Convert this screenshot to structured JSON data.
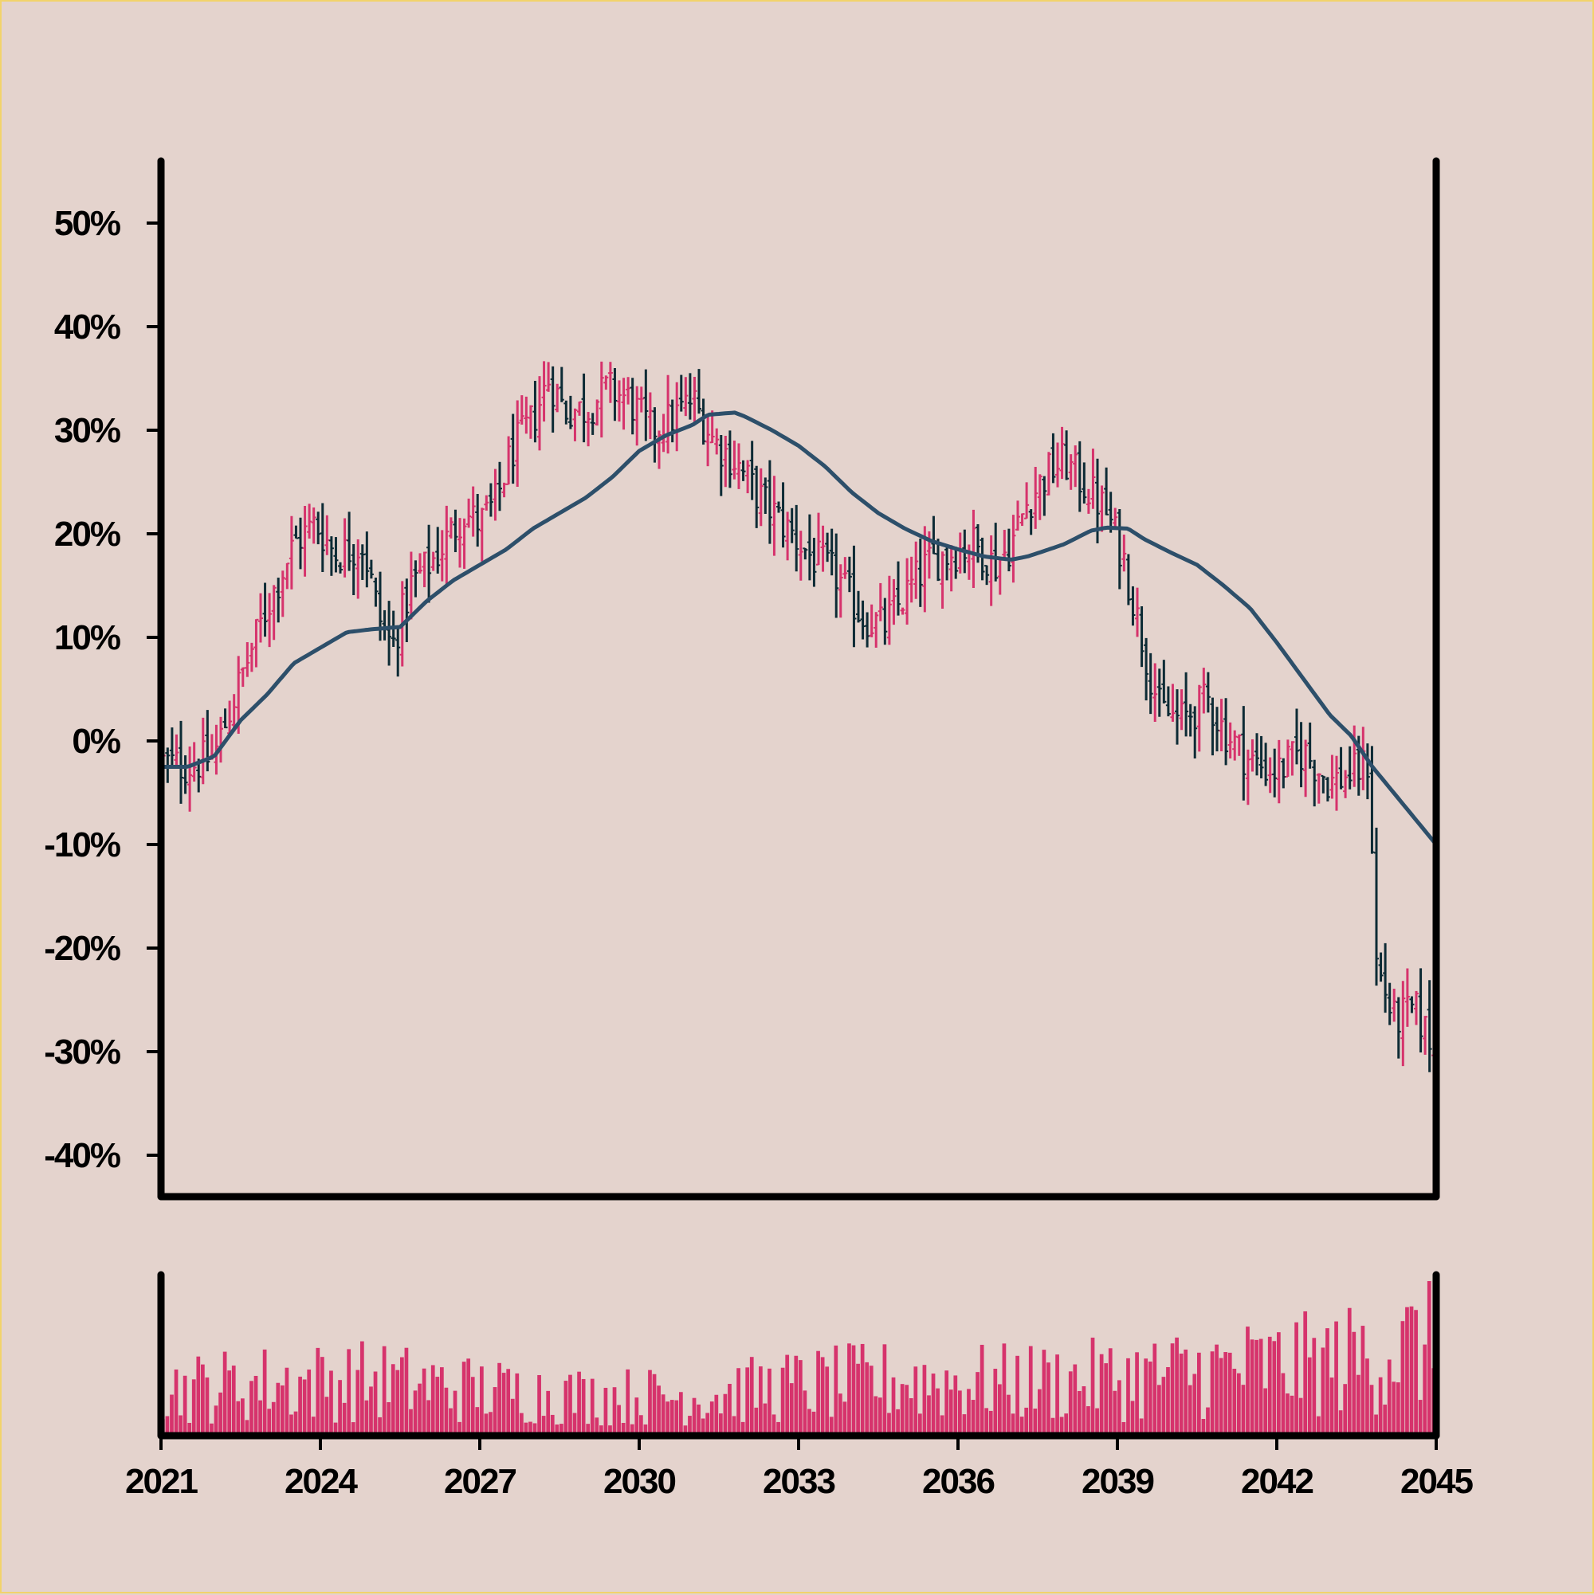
{
  "chart_data": {
    "type": "ohlc",
    "title": "",
    "xlabel": "",
    "ylabel": "",
    "colors": {
      "up": "#d6336c",
      "down": "#0d2b35",
      "moving_average": "#2d4f6a",
      "volume": "#d6336c",
      "background": "#e4d3cd",
      "axis": "#000000",
      "border": "#f2d36b"
    },
    "grid": false,
    "legend": "none",
    "price_panel": {
      "y_unit": "%",
      "ylim": [
        -44,
        56
      ],
      "y_ticks": [
        50,
        40,
        30,
        20,
        10,
        0,
        -10,
        -20,
        -30,
        -40
      ],
      "y_tick_labels": [
        "50%",
        "40%",
        "30%",
        "20%",
        "10%",
        "0%",
        "-10%",
        "-20%",
        "-30%",
        "-40%"
      ],
      "price_path_anchors": [
        [
          2021.0,
          -2.0
        ],
        [
          2021.5,
          -2.5
        ],
        [
          2022.0,
          -1.5
        ],
        [
          2022.5,
          6.0
        ],
        [
          2023.0,
          13.0
        ],
        [
          2023.5,
          19.0
        ],
        [
          2023.9,
          21.0
        ],
        [
          2024.3,
          18.0
        ],
        [
          2024.8,
          19.0
        ],
        [
          2025.1,
          12.0
        ],
        [
          2025.35,
          9.0
        ],
        [
          2025.7,
          15.0
        ],
        [
          2026.2,
          18.0
        ],
        [
          2026.7,
          22.0
        ],
        [
          2027.0,
          21.0
        ],
        [
          2027.3,
          23.0
        ],
        [
          2027.6,
          28.0
        ],
        [
          2028.0,
          31.0
        ],
        [
          2028.3,
          35.0
        ],
        [
          2028.6,
          32.0
        ],
        [
          2029.0,
          32.0
        ],
        [
          2029.4,
          34.0
        ],
        [
          2029.8,
          33.0
        ],
        [
          2030.2,
          30.0
        ],
        [
          2030.6,
          31.0
        ],
        [
          2031.0,
          33.0
        ],
        [
          2031.4,
          29.0
        ],
        [
          2031.8,
          27.0
        ],
        [
          2032.2,
          24.0
        ],
        [
          2032.7,
          21.0
        ],
        [
          2033.2,
          18.0
        ],
        [
          2033.7,
          16.0
        ],
        [
          2034.2,
          12.0
        ],
        [
          2034.6,
          11.0
        ],
        [
          2035.0,
          14.0
        ],
        [
          2035.4,
          17.0
        ],
        [
          2035.8,
          18.0
        ],
        [
          2036.3,
          19.0
        ],
        [
          2036.7,
          17.0
        ],
        [
          2037.0,
          19.0
        ],
        [
          2037.3,
          23.0
        ],
        [
          2037.7,
          26.0
        ],
        [
          2038.0,
          27.0
        ],
        [
          2038.5,
          24.0
        ],
        [
          2038.8,
          22.0
        ],
        [
          2039.1,
          18.0
        ],
        [
          2039.5,
          9.0
        ],
        [
          2039.8,
          3.0
        ],
        [
          2040.2,
          2.0
        ],
        [
          2040.7,
          4.0
        ],
        [
          2041.0,
          1.0
        ],
        [
          2041.5,
          -2.0
        ],
        [
          2042.0,
          -3.0
        ],
        [
          2042.5,
          -1.0
        ],
        [
          2043.0,
          -4.0
        ],
        [
          2043.5,
          -3.0
        ],
        [
          2043.75,
          -2.0
        ],
        [
          2043.85,
          -21.0
        ],
        [
          2044.2,
          -27.0
        ],
        [
          2044.6,
          -26.0
        ],
        [
          2045.0,
          -30.0
        ]
      ],
      "moving_average_anchors": [
        [
          2021.0,
          -2.5
        ],
        [
          2021.5,
          -2.5
        ],
        [
          2022.0,
          -1.5
        ],
        [
          2022.5,
          2.0
        ],
        [
          2023.0,
          4.5
        ],
        [
          2023.5,
          7.5
        ],
        [
          2024.0,
          9.0
        ],
        [
          2024.5,
          10.5
        ],
        [
          2025.0,
          10.8
        ],
        [
          2025.5,
          11.0
        ],
        [
          2026.0,
          13.5
        ],
        [
          2026.5,
          15.5
        ],
        [
          2027.0,
          17.0
        ],
        [
          2027.5,
          18.5
        ],
        [
          2028.0,
          20.5
        ],
        [
          2028.5,
          22.0
        ],
        [
          2029.0,
          23.5
        ],
        [
          2029.5,
          25.5
        ],
        [
          2030.0,
          28.0
        ],
        [
          2030.5,
          29.5
        ],
        [
          2031.0,
          30.5
        ],
        [
          2031.3,
          31.5
        ],
        [
          2031.8,
          31.7
        ],
        [
          2032.0,
          31.3
        ],
        [
          2032.5,
          30.0
        ],
        [
          2033.0,
          28.5
        ],
        [
          2033.5,
          26.5
        ],
        [
          2034.0,
          24.0
        ],
        [
          2034.5,
          22.0
        ],
        [
          2035.0,
          20.5
        ],
        [
          2035.5,
          19.3
        ],
        [
          2036.0,
          18.5
        ],
        [
          2036.5,
          17.8
        ],
        [
          2037.0,
          17.5
        ],
        [
          2037.3,
          17.8
        ],
        [
          2037.6,
          18.3
        ],
        [
          2038.0,
          19.0
        ],
        [
          2038.5,
          20.3
        ],
        [
          2038.8,
          20.6
        ],
        [
          2039.2,
          20.5
        ],
        [
          2039.5,
          19.5
        ],
        [
          2040.0,
          18.2
        ],
        [
          2040.5,
          17.0
        ],
        [
          2041.0,
          15.0
        ],
        [
          2041.5,
          12.8
        ],
        [
          2042.0,
          9.5
        ],
        [
          2042.5,
          6.0
        ],
        [
          2043.0,
          2.5
        ],
        [
          2043.4,
          0.5
        ],
        [
          2043.8,
          -2.5
        ],
        [
          2044.2,
          -5.0
        ],
        [
          2044.6,
          -7.5
        ],
        [
          2045.0,
          -10.0
        ]
      ],
      "bars_per_year": 12
    },
    "volume_panel": {
      "y_unit": "",
      "trend_anchors": [
        [
          2021.0,
          0.35
        ],
        [
          2023.0,
          0.4
        ],
        [
          2025.0,
          0.42
        ],
        [
          2027.0,
          0.35
        ],
        [
          2029.0,
          0.3
        ],
        [
          2031.0,
          0.3
        ],
        [
          2033.0,
          0.38
        ],
        [
          2035.0,
          0.42
        ],
        [
          2037.0,
          0.4
        ],
        [
          2039.0,
          0.43
        ],
        [
          2041.0,
          0.5
        ],
        [
          2043.0,
          0.55
        ],
        [
          2045.0,
          0.7
        ]
      ]
    },
    "x_axis": {
      "xlim": [
        2021,
        2045
      ],
      "x_ticks": [
        2021,
        2024,
        2027,
        2030,
        2033,
        2036,
        2039,
        2042,
        2045
      ],
      "x_tick_labels": [
        "2021",
        "2024",
        "2027",
        "2030",
        "2033",
        "2036",
        "2039",
        "2042",
        "2045"
      ]
    }
  }
}
